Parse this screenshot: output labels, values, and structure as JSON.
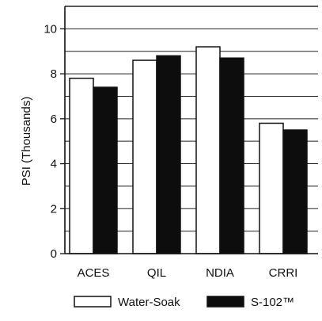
{
  "chart_data": {
    "type": "bar",
    "title": "",
    "xlabel": "",
    "ylabel": "PSI (Thousands)",
    "ylim": [
      0,
      11
    ],
    "yticks": [
      0,
      2,
      4,
      6,
      8,
      10
    ],
    "grid": true,
    "legend_position": "bottom",
    "categories": [
      "ACES",
      "QIL",
      "NDIA",
      "CRRI"
    ],
    "series": [
      {
        "name": "Water-Soak",
        "values": [
          7.8,
          8.6,
          9.2,
          5.8
        ],
        "color": "#ffffff"
      },
      {
        "name": "S-102™",
        "values": [
          7.4,
          8.8,
          8.7,
          5.5
        ],
        "color": "#0d0d0d"
      }
    ]
  }
}
